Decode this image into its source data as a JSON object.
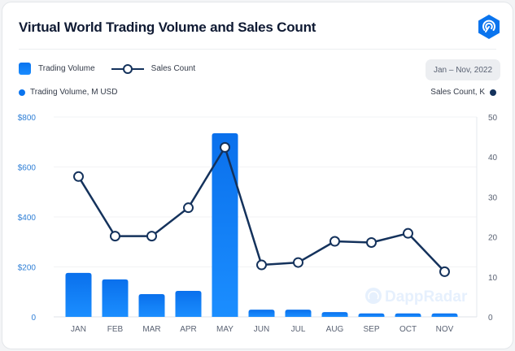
{
  "header": {
    "title": "Virtual World Trading Volume and Sales Count",
    "logo_icon": "dappradar-logo-icon",
    "date_range": "Jan – Nov, 2022"
  },
  "legend": {
    "items": [
      {
        "label": "Trading Volume",
        "type": "bar",
        "color": "#0a74ee"
      },
      {
        "label": "Sales Count",
        "type": "line",
        "color": "#14325c"
      }
    ],
    "left_axis_title": "Trading Volume, M USD",
    "right_axis_title": "Sales Count, K",
    "left_dot_color": "#0a74ee",
    "right_dot_color": "#14325c"
  },
  "watermark": "DappRadar",
  "chart_data": {
    "type": "bar+line",
    "title": "Virtual World Trading Volume and Sales Count",
    "categories": [
      "JAN",
      "FEB",
      "MAR",
      "APR",
      "MAY",
      "JUN",
      "JUL",
      "AUG",
      "SEP",
      "OCT",
      "NOV"
    ],
    "series": [
      {
        "name": "Trading Volume",
        "type": "bar",
        "axis": "left",
        "unit": "M USD",
        "values": [
          176,
          150,
          91,
          104,
          735,
          29,
          29,
          19,
          14,
          14,
          14
        ]
      },
      {
        "name": "Sales Count",
        "type": "line",
        "axis": "right",
        "unit": "K",
        "values": [
          35.1,
          20.2,
          20.2,
          27.3,
          42.4,
          13.0,
          13.6,
          18.9,
          18.6,
          20.9,
          11.3
        ]
      }
    ],
    "y_left": {
      "label": "Trading Volume, M USD",
      "ylim": [
        0,
        800
      ],
      "ticks": [
        0,
        200,
        400,
        600,
        800
      ],
      "tick_labels": [
        "0",
        "$200",
        "$400",
        "$600",
        "$800"
      ]
    },
    "y_right": {
      "label": "Sales Count, K",
      "ylim": [
        0,
        50
      ],
      "ticks": [
        0,
        10,
        20,
        30,
        40,
        50
      ],
      "tick_labels": [
        "0",
        "10",
        "20",
        "30",
        "40",
        "50"
      ]
    },
    "grid": true,
    "legend_position": "top-left"
  }
}
